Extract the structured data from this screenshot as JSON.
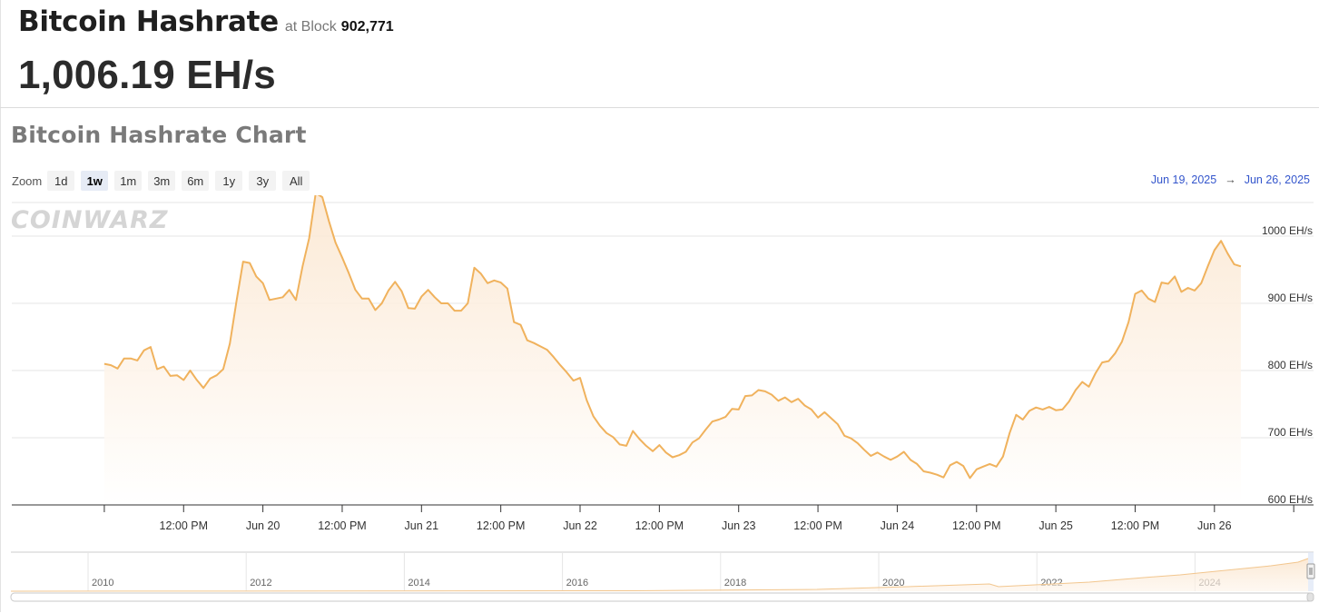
{
  "header": {
    "title": "Bitcoin Hashrate",
    "at_block_label": "at Block",
    "block_number": "902,771",
    "current_value": "1,006.19 EH/s"
  },
  "chart_section": {
    "title": "Bitcoin Hashrate Chart",
    "watermark": "COINWARZ",
    "zoom_label": "Zoom",
    "zoom_options": [
      "1d",
      "1w",
      "1m",
      "3m",
      "6m",
      "1y",
      "3y",
      "All"
    ],
    "zoom_selected": "1w",
    "range_from": "Jun 19, 2025",
    "range_arrow": "→",
    "range_to": "Jun 26, 2025"
  },
  "colors": {
    "line": "#f0b25d",
    "fill_top": "#fbe6cf",
    "fill_bottom": "#ffffff",
    "accent_link": "#3355cc",
    "zoom_active_bg": "#e6ebf5"
  },
  "chart_data": {
    "type": "area",
    "ylabel": "",
    "xlabel": "",
    "y_unit": "EH/s",
    "ylim": [
      600,
      1050
    ],
    "y_ticks": [
      600,
      700,
      800,
      900,
      1000
    ],
    "y_tick_labels": [
      "600 EH/s",
      "700 EH/s",
      "800 EH/s",
      "900 EH/s",
      "1000 EH/s"
    ],
    "x_unit": "hours since Jun 19 00:00",
    "xlim": [
      -14,
      183
    ],
    "x_ticks": [
      0,
      12,
      24,
      36,
      48,
      60,
      72,
      84,
      96,
      108,
      120,
      132,
      144,
      156,
      168,
      180
    ],
    "x_tick_labels": [
      "12:00 PM",
      "Jun 20",
      "12:00 PM",
      "Jun 21",
      "12:00 PM",
      "Jun 22",
      "12:00 PM",
      "Jun 23",
      "12:00 PM",
      "Jun 24",
      "12:00 PM",
      "Jun 25",
      "12:00 PM",
      "Jun 26"
    ],
    "x_tick_label_hours": [
      12,
      24,
      36,
      48,
      60,
      72,
      84,
      96,
      108,
      120,
      132,
      144,
      156,
      168
    ],
    "grid": "horizontal",
    "series": [
      {
        "name": "Hashrate",
        "x": [
          0,
          1,
          2,
          3,
          4,
          5,
          6,
          7,
          8,
          9,
          10,
          11,
          12,
          13,
          14,
          15,
          16,
          17,
          18,
          19,
          20,
          21,
          22,
          23,
          24,
          25,
          26,
          27,
          28,
          29,
          30,
          31,
          32,
          33,
          34,
          35,
          36,
          37,
          38,
          39,
          40,
          41,
          42,
          43,
          44,
          45,
          46,
          47,
          48,
          49,
          50,
          51,
          52,
          53,
          54,
          55,
          56,
          57,
          58,
          59,
          60,
          61,
          62,
          63,
          64,
          65,
          66,
          67,
          68,
          69,
          70,
          71,
          72,
          73,
          74,
          75,
          76,
          77,
          78,
          79,
          80,
          81,
          82,
          83,
          84,
          85,
          86,
          87,
          88,
          89,
          90,
          91,
          92,
          93,
          94,
          95,
          96,
          97,
          98,
          99,
          100,
          101,
          102,
          103,
          104,
          105,
          106,
          107,
          108,
          109,
          110,
          111,
          112,
          113,
          114,
          115,
          116,
          117,
          118,
          119,
          120,
          121,
          122,
          123,
          124,
          125,
          126,
          127,
          128,
          129,
          130,
          131,
          132,
          133,
          134,
          135,
          136,
          137,
          138,
          139,
          140,
          141,
          142,
          143,
          144,
          145,
          146,
          147,
          148,
          149,
          150,
          151,
          152,
          153,
          154,
          155,
          156,
          157,
          158,
          159,
          160,
          161,
          162,
          163,
          164,
          165,
          166,
          167,
          168,
          169,
          170,
          171,
          172
        ],
        "values": [
          810,
          808,
          803,
          818,
          818,
          815,
          830,
          835,
          802,
          806,
          792,
          793,
          786,
          800,
          786,
          774,
          788,
          793,
          802,
          840,
          903,
          962,
          960,
          940,
          930,
          905,
          907,
          909,
          920,
          905,
          955,
          997,
          1064,
          1058,
          1022,
          990,
          968,
          945,
          920,
          907,
          907,
          890,
          900,
          919,
          932,
          918,
          893,
          892,
          910,
          920,
          909,
          900,
          900,
          889,
          889,
          900,
          953,
          944,
          930,
          934,
          931,
          922,
          872,
          868,
          845,
          841,
          836,
          831,
          820,
          808,
          797,
          785,
          789,
          756,
          732,
          718,
          707,
          701,
          690,
          688,
          710,
          698,
          688,
          680,
          689,
          678,
          671,
          674,
          679,
          693,
          699,
          712,
          724,
          727,
          731,
          743,
          742,
          762,
          763,
          771,
          769,
          764,
          755,
          760,
          753,
          758,
          748,
          742,
          730,
          738,
          729,
          720,
          703,
          699,
          692,
          682,
          673,
          678,
          672,
          667,
          672,
          679,
          667,
          661,
          650,
          648,
          645,
          641,
          659,
          664,
          658,
          640,
          653,
          657,
          661,
          657,
          672,
          707,
          734,
          727,
          740,
          745,
          742,
          746,
          741,
          742,
          754,
          771,
          783,
          776,
          796,
          812,
          814,
          826,
          843,
          872,
          914,
          919,
          907,
          902,
          931,
          929,
          940,
          917,
          923,
          919,
          930,
          955,
          979,
          993,
          974,
          958,
          955
        ]
      }
    ],
    "navigator": {
      "year_labels": [
        "2010",
        "2012",
        "2014",
        "2016",
        "2018",
        "2020",
        "2022",
        "2024"
      ]
    }
  }
}
